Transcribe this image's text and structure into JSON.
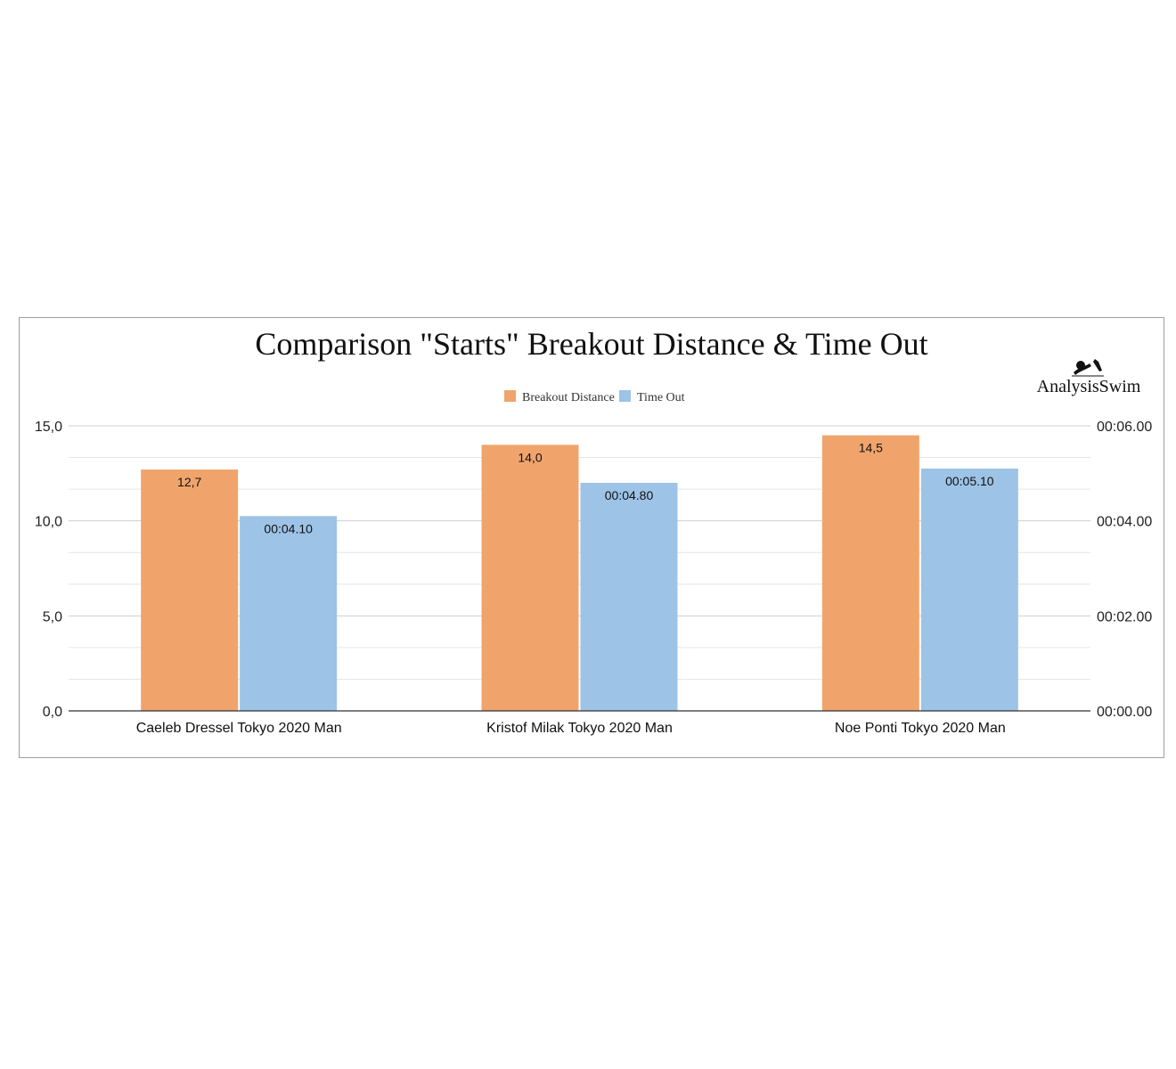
{
  "colors": {
    "breakout": "#f0a46c",
    "timeout": "#9dc3e6",
    "grid": "#d9d9d9",
    "axis": "#333333"
  },
  "logo": {
    "text": "AnalysisSwim",
    "icon": "swimmer-icon"
  },
  "chart_data": {
    "type": "bar",
    "title": "Comparison \"Starts\" Breakout Distance & Time Out",
    "legend_position": "top-center",
    "grid": true,
    "categories": [
      "Caeleb Dressel Tokyo 2020 Man",
      "Kristof Milak Tokyo 2020 Man",
      "Noe Ponti Tokyo 2020 Man"
    ],
    "series": [
      {
        "name": "Breakout Distance",
        "axis": "left",
        "values": [
          12.7,
          14.0,
          14.5
        ],
        "labels": [
          "12,7",
          "14,0",
          "14,5"
        ]
      },
      {
        "name": "Time Out",
        "axis": "right",
        "values": [
          4.1,
          4.8,
          5.1
        ],
        "labels": [
          "00:04.10",
          "00:04.80",
          "00:05.10"
        ]
      }
    ],
    "left_axis": {
      "range": [
        0,
        15
      ],
      "ticks": [
        0,
        5,
        10,
        15
      ],
      "tick_labels": [
        "0,0",
        "5,0",
        "10,0",
        "15,0"
      ]
    },
    "right_axis": {
      "range": [
        0,
        6
      ],
      "ticks": [
        0,
        2,
        4,
        6
      ],
      "tick_labels": [
        "00:00.00",
        "00:02.00",
        "00:04.00",
        "00:06.00"
      ]
    }
  }
}
